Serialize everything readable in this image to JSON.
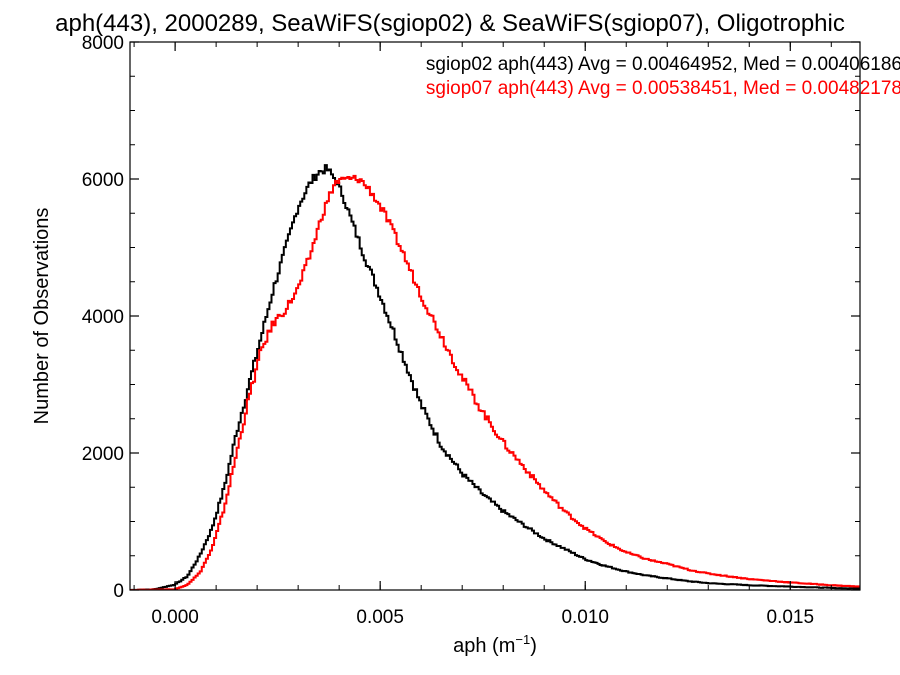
{
  "chart_data": {
    "type": "line",
    "title": "aph(443), 2000289, SeaWiFS(sgiop02) & SeaWiFS(sgiop07), Oligotrophic",
    "xlabel": "aph (m",
    "xlabel_sup": "−1",
    "xlabel_end": ")",
    "ylabel": "Number of Observations",
    "xlim": [
      -0.0011,
      0.0167
    ],
    "ylim": [
      0,
      8000
    ],
    "xticks": [
      0.0,
      0.005,
      0.01,
      0.015
    ],
    "xtick_labels": [
      "0.000",
      "0.005",
      "0.010",
      "0.015"
    ],
    "yticks": [
      0,
      2000,
      4000,
      6000,
      8000
    ],
    "ytick_labels": [
      "0",
      "2000",
      "4000",
      "6000",
      "8000"
    ],
    "legend": [
      {
        "text": "sgiop02 aph(443) Avg = 0.00464952, Med = 0.00406186",
        "color": "#000000"
      },
      {
        "text": "sgiop07 aph(443) Avg = 0.00538451, Med = 0.00482178",
        "color": "#ff0000"
      }
    ],
    "series": [
      {
        "color": "#000000",
        "x": [
          -0.0011,
          -0.0005,
          0.0,
          0.0003,
          0.0006,
          0.0009,
          0.0012,
          0.0015,
          0.0018,
          0.0021,
          0.0024,
          0.0027,
          0.003,
          0.0033,
          0.0035,
          0.0037,
          0.0039,
          0.0041,
          0.0043,
          0.0046,
          0.005,
          0.0055,
          0.006,
          0.0065,
          0.007,
          0.0075,
          0.008,
          0.0085,
          0.009,
          0.0095,
          0.01,
          0.0105,
          0.011,
          0.0115,
          0.012,
          0.0125,
          0.013,
          0.014,
          0.015,
          0.016,
          0.0167
        ],
        "y": [
          0,
          10,
          80,
          200,
          500,
          900,
          1500,
          2300,
          3000,
          3700,
          4400,
          5000,
          5600,
          5950,
          6100,
          6150,
          6000,
          5750,
          5400,
          4900,
          4300,
          3500,
          2700,
          2100,
          1700,
          1400,
          1150,
          950,
          750,
          600,
          450,
          350,
          270,
          210,
          170,
          130,
          100,
          70,
          50,
          30,
          20
        ]
      },
      {
        "color": "#ff0000",
        "x": [
          -0.0011,
          0.0,
          0.0003,
          0.0006,
          0.0009,
          0.0012,
          0.0015,
          0.0018,
          0.0021,
          0.0024,
          0.0027,
          0.003,
          0.0033,
          0.0036,
          0.0039,
          0.0042,
          0.0045,
          0.0048,
          0.0051,
          0.0055,
          0.006,
          0.0065,
          0.007,
          0.0075,
          0.008,
          0.0085,
          0.009,
          0.0095,
          0.01,
          0.0105,
          0.011,
          0.0115,
          0.012,
          0.0125,
          0.013,
          0.014,
          0.015,
          0.016,
          0.0167
        ],
        "y": [
          0,
          10,
          80,
          250,
          600,
          1200,
          2000,
          2800,
          3500,
          3900,
          4100,
          4400,
          4900,
          5500,
          5950,
          6000,
          6000,
          5800,
          5500,
          5000,
          4300,
          3700,
          3100,
          2600,
          2150,
          1800,
          1450,
          1150,
          900,
          700,
          550,
          450,
          380,
          300,
          240,
          160,
          110,
          70,
          50
        ]
      }
    ]
  }
}
